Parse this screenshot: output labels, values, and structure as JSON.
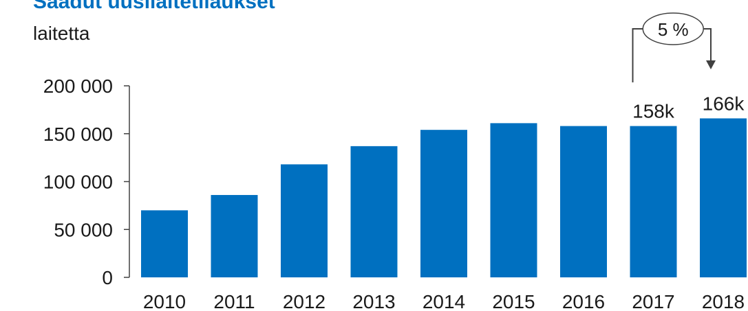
{
  "colors": {
    "title": "#0070C0",
    "bar": "#0070C0",
    "axis": "#404040",
    "text": "#1a1a1a"
  },
  "chart_data": {
    "type": "bar",
    "title": "Saadut uusilaitetilaukset",
    "ylabel": "laitetta",
    "xlabel": "",
    "categories": [
      "2010",
      "2011",
      "2012",
      "2013",
      "2014",
      "2015",
      "2016",
      "2017",
      "2018"
    ],
    "values": [
      70000,
      86000,
      118000,
      137000,
      154000,
      161000,
      158000,
      158000,
      166000
    ],
    "ylim": [
      0,
      200000
    ],
    "yticks": [
      0,
      50000,
      100000,
      150000,
      200000
    ],
    "ytick_labels": [
      "0",
      "50 000",
      "100 000",
      "150 000",
      "200 000"
    ],
    "grid": false,
    "data_labels": [
      {
        "category": "2017",
        "text": "158k"
      },
      {
        "category": "2018",
        "text": "166k"
      }
    ],
    "annotation": {
      "text": "5 %",
      "from": "2017",
      "to": "2018"
    }
  }
}
